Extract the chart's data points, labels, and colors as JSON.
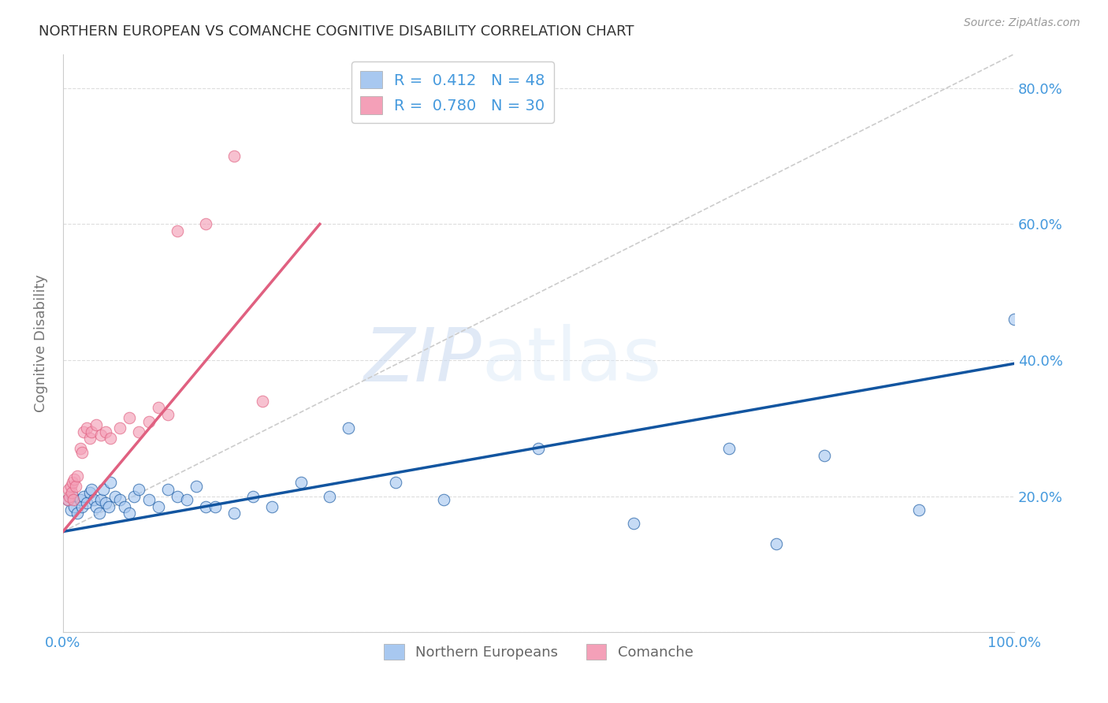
{
  "title": "NORTHERN EUROPEAN VS COMANCHE COGNITIVE DISABILITY CORRELATION CHART",
  "source": "Source: ZipAtlas.com",
  "ylabel": "Cognitive Disability",
  "xlim": [
    0,
    1.0
  ],
  "ylim": [
    0.0,
    0.85
  ],
  "blue_scatter_x": [
    0.005,
    0.008,
    0.01,
    0.012,
    0.015,
    0.018,
    0.02,
    0.022,
    0.025,
    0.028,
    0.03,
    0.032,
    0.035,
    0.038,
    0.04,
    0.042,
    0.045,
    0.048,
    0.05,
    0.055,
    0.06,
    0.065,
    0.07,
    0.075,
    0.08,
    0.09,
    0.1,
    0.11,
    0.12,
    0.13,
    0.14,
    0.15,
    0.16,
    0.18,
    0.2,
    0.22,
    0.25,
    0.28,
    0.3,
    0.35,
    0.4,
    0.5,
    0.6,
    0.7,
    0.75,
    0.8,
    0.9,
    1.0
  ],
  "blue_scatter_y": [
    0.195,
    0.18,
    0.2,
    0.185,
    0.175,
    0.195,
    0.185,
    0.2,
    0.19,
    0.205,
    0.21,
    0.195,
    0.185,
    0.175,
    0.195,
    0.21,
    0.19,
    0.185,
    0.22,
    0.2,
    0.195,
    0.185,
    0.175,
    0.2,
    0.21,
    0.195,
    0.185,
    0.21,
    0.2,
    0.195,
    0.215,
    0.185,
    0.185,
    0.175,
    0.2,
    0.185,
    0.22,
    0.2,
    0.3,
    0.22,
    0.195,
    0.27,
    0.16,
    0.27,
    0.13,
    0.26,
    0.18,
    0.46
  ],
  "pink_scatter_x": [
    0.005,
    0.006,
    0.007,
    0.008,
    0.009,
    0.01,
    0.011,
    0.012,
    0.013,
    0.015,
    0.018,
    0.02,
    0.022,
    0.025,
    0.028,
    0.03,
    0.035,
    0.04,
    0.045,
    0.05,
    0.06,
    0.07,
    0.08,
    0.09,
    0.1,
    0.11,
    0.12,
    0.15,
    0.18,
    0.21
  ],
  "pink_scatter_y": [
    0.195,
    0.21,
    0.2,
    0.215,
    0.205,
    0.22,
    0.195,
    0.225,
    0.215,
    0.23,
    0.27,
    0.265,
    0.295,
    0.3,
    0.285,
    0.295,
    0.305,
    0.29,
    0.295,
    0.285,
    0.3,
    0.315,
    0.295,
    0.31,
    0.33,
    0.32,
    0.59,
    0.6,
    0.7,
    0.34
  ],
  "blue_line_x": [
    0.0,
    1.0
  ],
  "blue_line_y": [
    0.148,
    0.395
  ],
  "pink_line_x": [
    0.0,
    0.27
  ],
  "pink_line_y": [
    0.148,
    0.6
  ],
  "blue_color": "#A8C8F0",
  "pink_color": "#F4A0B8",
  "blue_line_color": "#1255A0",
  "pink_line_color": "#E06080",
  "diag_line_x": [
    0.0,
    1.0
  ],
  "diag_line_y": [
    0.148,
    0.85
  ],
  "diag_color": "#CCCCCC",
  "legend_blue_label": "R =  0.412   N = 48",
  "legend_pink_label": "R =  0.780   N = 30",
  "series1_name": "Northern Europeans",
  "series2_name": "Comanche",
  "watermark_zip": "ZIP",
  "watermark_atlas": "atlas",
  "background_color": "#FFFFFF",
  "grid_color": "#DDDDDD"
}
